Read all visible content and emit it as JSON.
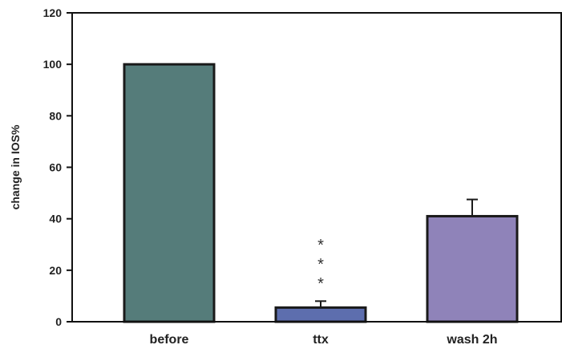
{
  "chart_data": {
    "type": "bar",
    "title": "",
    "xlabel": "",
    "ylabel": "change in IOS%",
    "ylim": [
      0,
      120
    ],
    "yticks": [
      0,
      20,
      40,
      60,
      80,
      100,
      120
    ],
    "categories": [
      "before",
      "ttx",
      "wash 2h"
    ],
    "values": [
      100,
      5.5,
      41
    ],
    "error_plus": [
      0,
      2.5,
      6.5
    ],
    "bar_colors": [
      "#557c7a",
      "#5d6eae",
      "#8f83b9"
    ],
    "annotations": [
      {
        "category": "ttx",
        "lines": [
          "*",
          "*",
          "*"
        ]
      }
    ],
    "grid": false,
    "legend": "none"
  }
}
